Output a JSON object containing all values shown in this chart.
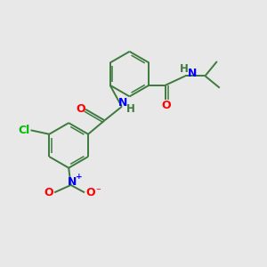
{
  "bg_color": "#e8e8e8",
  "bond_color": "#3d7a3d",
  "atom_colors": {
    "O": "#ff0000",
    "N": "#0000ff",
    "Cl": "#00bb00",
    "H": "#3d7a3d",
    "C": "#3d7a3d"
  },
  "figsize": [
    3.0,
    3.0
  ],
  "dpi": 100
}
